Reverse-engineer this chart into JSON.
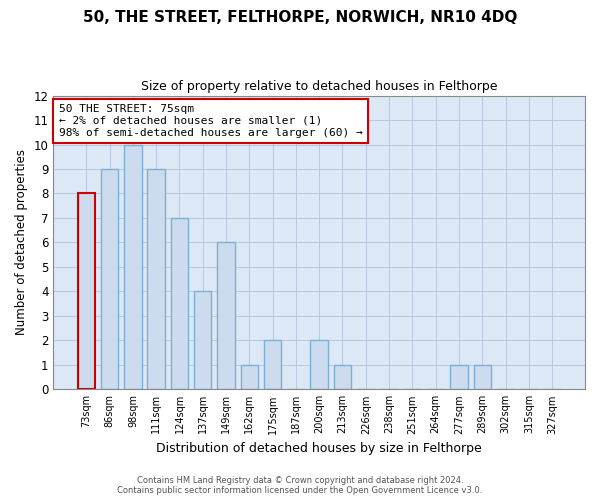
{
  "title": "50, THE STREET, FELTHORPE, NORWICH, NR10 4DQ",
  "subtitle": "Size of property relative to detached houses in Felthorpe",
  "xlabel": "Distribution of detached houses by size in Felthorpe",
  "ylabel": "Number of detached properties",
  "categories": [
    "73sqm",
    "86sqm",
    "98sqm",
    "111sqm",
    "124sqm",
    "137sqm",
    "149sqm",
    "162sqm",
    "175sqm",
    "187sqm",
    "200sqm",
    "213sqm",
    "226sqm",
    "238sqm",
    "251sqm",
    "264sqm",
    "277sqm",
    "289sqm",
    "302sqm",
    "315sqm",
    "327sqm"
  ],
  "values": [
    8,
    9,
    10,
    9,
    7,
    4,
    6,
    1,
    2,
    0,
    2,
    1,
    0,
    0,
    0,
    0,
    1,
    1,
    0,
    0,
    0
  ],
  "highlight_index": 0,
  "bar_color": "#ccdcee",
  "bar_edge_color": "#7bafd4",
  "highlight_bar_edge_color": "#cc0000",
  "annotation_box_text": "50 THE STREET: 75sqm\n← 2% of detached houses are smaller (1)\n98% of semi-detached houses are larger (60) →",
  "annotation_box_edge_color": "#cc0000",
  "ylim": [
    0,
    12
  ],
  "yticks": [
    0,
    1,
    2,
    3,
    4,
    5,
    6,
    7,
    8,
    9,
    10,
    11,
    12
  ],
  "footer_line1": "Contains HM Land Registry data © Crown copyright and database right 2024.",
  "footer_line2": "Contains public sector information licensed under the Open Government Licence v3.0.",
  "grid_color": "#b8c8dc",
  "background_color": "#dce8f5"
}
